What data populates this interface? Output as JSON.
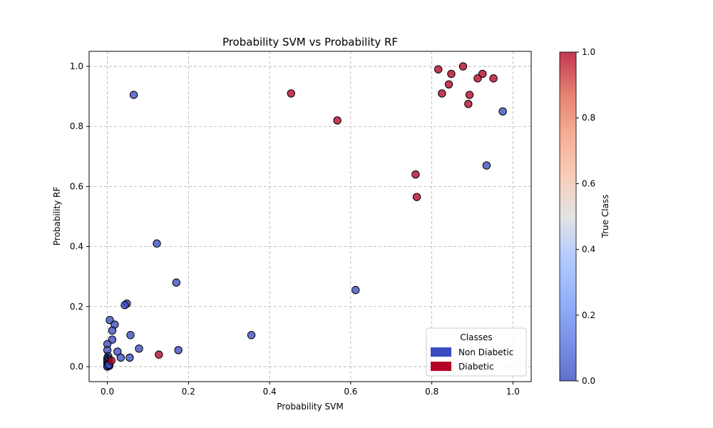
{
  "chart_data": {
    "type": "scatter",
    "title": "Probability SVM vs Probability RF",
    "xlabel": "Probability SVM",
    "ylabel": "Probability RF",
    "xlim": [
      -0.045,
      1.045
    ],
    "ylim": [
      -0.05,
      1.05
    ],
    "xticks": [
      "0.0",
      "0.2",
      "0.4",
      "0.6",
      "0.8",
      "1.0"
    ],
    "yticks": [
      "0.0",
      "0.2",
      "0.4",
      "0.6",
      "0.8",
      "1.0"
    ],
    "grid": true,
    "colormap": "coolwarm",
    "colors": {
      "class_0": "#3b4cc0",
      "class_1": "#b40426"
    },
    "colorbar": {
      "label": "True Class",
      "range": [
        0,
        1
      ],
      "ticks": [
        "0.0",
        "0.2",
        "0.4",
        "0.6",
        "0.8",
        "1.0"
      ]
    },
    "legend": {
      "title": "Classes",
      "position": "lower-right",
      "entries": [
        {
          "label": "Non Diabetic",
          "color": "#3b4cc0"
        },
        {
          "label": "Diabetic",
          "color": "#b40426"
        }
      ]
    },
    "series": [
      {
        "class": 0,
        "points": [
          [
            0.065,
            0.905
          ],
          [
            0.975,
            0.85
          ],
          [
            0.935,
            0.67
          ],
          [
            0.122,
            0.41
          ],
          [
            0.17,
            0.28
          ],
          [
            0.612,
            0.255
          ],
          [
            0.048,
            0.21
          ],
          [
            0.043,
            0.205
          ],
          [
            0.006,
            0.155
          ],
          [
            0.018,
            0.14
          ],
          [
            0.012,
            0.12
          ],
          [
            0.057,
            0.105
          ],
          [
            0.355,
            0.105
          ],
          [
            0.012,
            0.09
          ],
          [
            0.0,
            0.075
          ],
          [
            0.078,
            0.06
          ],
          [
            0.175,
            0.055
          ],
          [
            0.0,
            0.055
          ],
          [
            0.025,
            0.05
          ],
          [
            0.002,
            0.035
          ],
          [
            0.033,
            0.03
          ],
          [
            0.055,
            0.03
          ],
          [
            0.0,
            0.028
          ],
          [
            0.003,
            0.025
          ],
          [
            0.0,
            0.02
          ],
          [
            0.004,
            0.018
          ],
          [
            0.0,
            0.015
          ],
          [
            0.002,
            0.01
          ],
          [
            0.0,
            0.008
          ],
          [
            0.001,
            0.005
          ],
          [
            0.0,
            0.002
          ],
          [
            0.0,
            0.0
          ],
          [
            0.005,
            0.003
          ],
          [
            0.003,
            0.006
          ]
        ]
      },
      {
        "class": 1,
        "points": [
          [
            0.877,
            1.0
          ],
          [
            0.816,
            0.99
          ],
          [
            0.925,
            0.975
          ],
          [
            0.848,
            0.975
          ],
          [
            0.913,
            0.96
          ],
          [
            0.952,
            0.96
          ],
          [
            0.842,
            0.94
          ],
          [
            0.825,
            0.91
          ],
          [
            0.453,
            0.91
          ],
          [
            0.893,
            0.905
          ],
          [
            0.89,
            0.875
          ],
          [
            0.567,
            0.82
          ],
          [
            0.76,
            0.64
          ],
          [
            0.763,
            0.565
          ],
          [
            0.127,
            0.04
          ],
          [
            0.01,
            0.02
          ]
        ]
      }
    ]
  }
}
